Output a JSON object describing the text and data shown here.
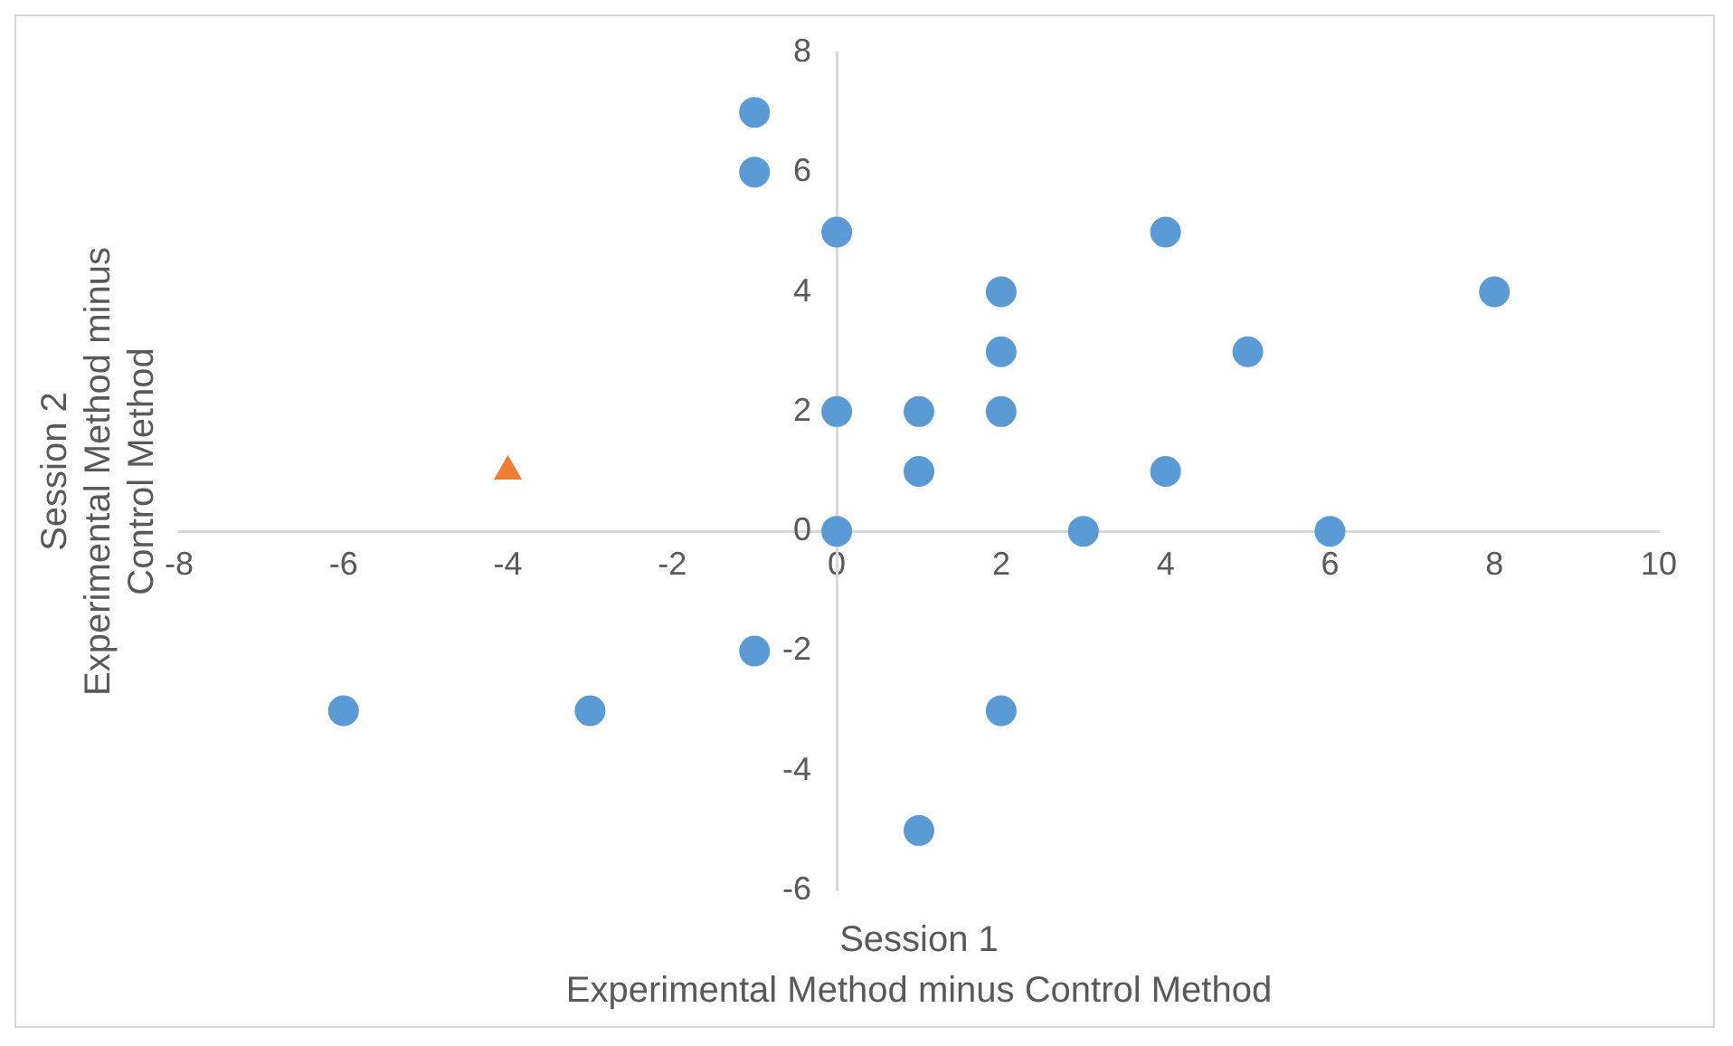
{
  "chart_data": {
    "type": "scatter",
    "xlabel": "Session 1\nExperimental Method minus Control Method",
    "ylabel": "Session 2\nExperimental Method minus\nControl Method",
    "xlim": [
      -8,
      10
    ],
    "xticks": [
      -8,
      -6,
      -4,
      -2,
      0,
      2,
      4,
      6,
      8,
      10
    ],
    "ylim": [
      -6,
      8
    ],
    "yticks": [
      -6,
      -4,
      -2,
      0,
      2,
      4,
      6,
      8
    ],
    "grid": false,
    "legend": false,
    "series": [
      {
        "color": "#5b9bd5",
        "marker": "circle",
        "x": [
          -1,
          -1,
          0,
          4,
          2,
          8,
          2,
          5,
          0,
          1,
          2,
          1,
          4,
          0,
          3,
          6,
          -1,
          -6,
          -3,
          2,
          1
        ],
        "values": [
          7,
          6,
          5,
          5,
          4,
          4,
          3,
          3,
          2,
          2,
          2,
          1,
          1,
          0,
          0,
          0,
          -2,
          -3,
          -3,
          -3,
          -5
        ]
      },
      {
        "color": "#ed7d31",
        "marker": "triangle",
        "x": [
          -4
        ],
        "values": [
          1
        ]
      }
    ]
  }
}
